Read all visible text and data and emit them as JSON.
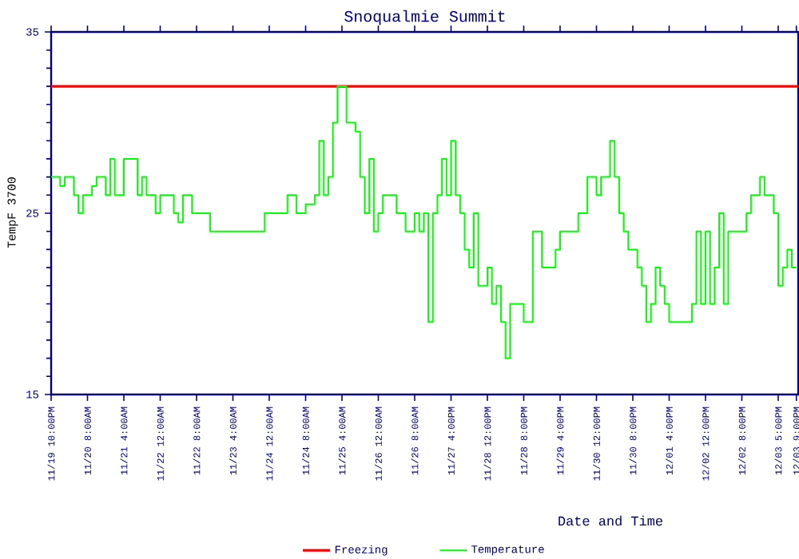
{
  "chart_data": {
    "type": "step",
    "title": "Snoqualmie Summit",
    "xlabel": "Date and Time",
    "ylabel": "TempF 3700",
    "ylim": [
      15,
      35
    ],
    "yticks": [
      15,
      25,
      35
    ],
    "categories": [
      "11/19 10:00PM",
      null,
      null,
      null,
      null,
      null,
      null,
      null,
      "11/20 8:00AM",
      null,
      null,
      null,
      null,
      null,
      null,
      null,
      "11/21 4:00AM",
      null,
      null,
      null,
      null,
      null,
      null,
      null,
      "11/22 12:00AM",
      null,
      null,
      null,
      null,
      null,
      null,
      null,
      "11/22 8:00AM",
      null,
      null,
      null,
      null,
      null,
      null,
      null,
      "11/23 4:00AM",
      null,
      null,
      null,
      null,
      null,
      null,
      null,
      "11/24 12:00AM",
      null,
      null,
      null,
      null,
      null,
      null,
      null,
      "11/24 8:00AM",
      null,
      null,
      null,
      null,
      null,
      null,
      null,
      "11/25 4:00AM",
      null,
      null,
      null,
      null,
      null,
      null,
      null,
      "11/26 12:00AM",
      null,
      null,
      null,
      null,
      null,
      null,
      null,
      "11/26 8:00AM",
      null,
      null,
      null,
      null,
      null,
      null,
      null,
      "11/27 4:00PM",
      null,
      null,
      null,
      null,
      null,
      null,
      null,
      "11/28 12:00PM",
      null,
      null,
      null,
      null,
      null,
      null,
      null,
      "11/28 8:00PM",
      null,
      null,
      null,
      null,
      null,
      null,
      null,
      "11/29 4:00PM",
      null,
      null,
      null,
      null,
      null,
      null,
      null,
      "11/30 12:00PM",
      null,
      null,
      null,
      null,
      null,
      null,
      null,
      "11/30 8:00PM",
      null,
      null,
      null,
      null,
      null,
      null,
      null,
      "12/01 4:00PM",
      null,
      null,
      null,
      null,
      null,
      null,
      null,
      "12/02 12:00PM",
      null,
      null,
      null,
      null,
      null,
      null,
      null,
      "12/02 8:00PM",
      null,
      null,
      null,
      null,
      null,
      null,
      null,
      "12/03 5:00PM",
      null,
      null,
      null,
      "12/03 9:00PM"
    ],
    "legend": "bottom",
    "marker": "none",
    "line_style": "solid",
    "ref_lines": [
      {
        "axis": "y",
        "value": 32,
        "label": "Freezing",
        "color": "#ff0000"
      }
    ],
    "series": [
      {
        "name": "Temperature",
        "color": "#00ff00",
        "values": [
          27,
          27,
          26.5,
          27,
          27,
          26,
          25,
          26,
          26,
          26.5,
          27,
          27,
          26,
          28,
          26,
          26,
          28,
          28,
          28,
          26,
          27,
          26,
          26,
          25,
          26,
          26,
          26,
          25,
          24.5,
          26,
          26,
          25,
          25,
          25,
          25,
          24,
          24,
          24,
          24,
          24,
          24,
          24,
          24,
          24,
          24,
          24,
          24,
          25,
          25,
          25,
          25,
          25,
          26,
          26,
          25,
          25,
          25.5,
          25.5,
          26,
          29,
          26,
          27,
          30,
          32,
          32,
          30,
          30,
          29.5,
          27,
          25,
          28,
          24,
          25,
          26,
          26,
          26,
          25,
          25,
          24,
          24,
          25,
          24,
          25,
          19,
          25,
          26,
          28,
          26,
          29,
          26,
          25,
          23,
          22,
          25,
          21,
          21,
          22,
          20,
          21,
          19,
          17,
          20,
          20,
          20,
          19,
          19,
          24,
          24,
          22,
          22,
          22,
          23,
          24,
          24,
          24,
          24,
          25,
          25,
          27,
          27,
          26,
          27,
          27,
          29,
          27,
          25,
          24,
          23,
          23,
          22,
          21,
          19,
          20,
          22,
          21,
          20,
          19,
          19,
          19,
          19,
          19,
          20,
          24,
          20,
          24,
          20,
          22,
          25,
          20,
          24,
          24,
          24,
          24,
          25,
          26,
          26,
          27,
          26,
          26,
          25,
          21,
          22,
          23,
          22,
          22
        ]
      }
    ]
  }
}
